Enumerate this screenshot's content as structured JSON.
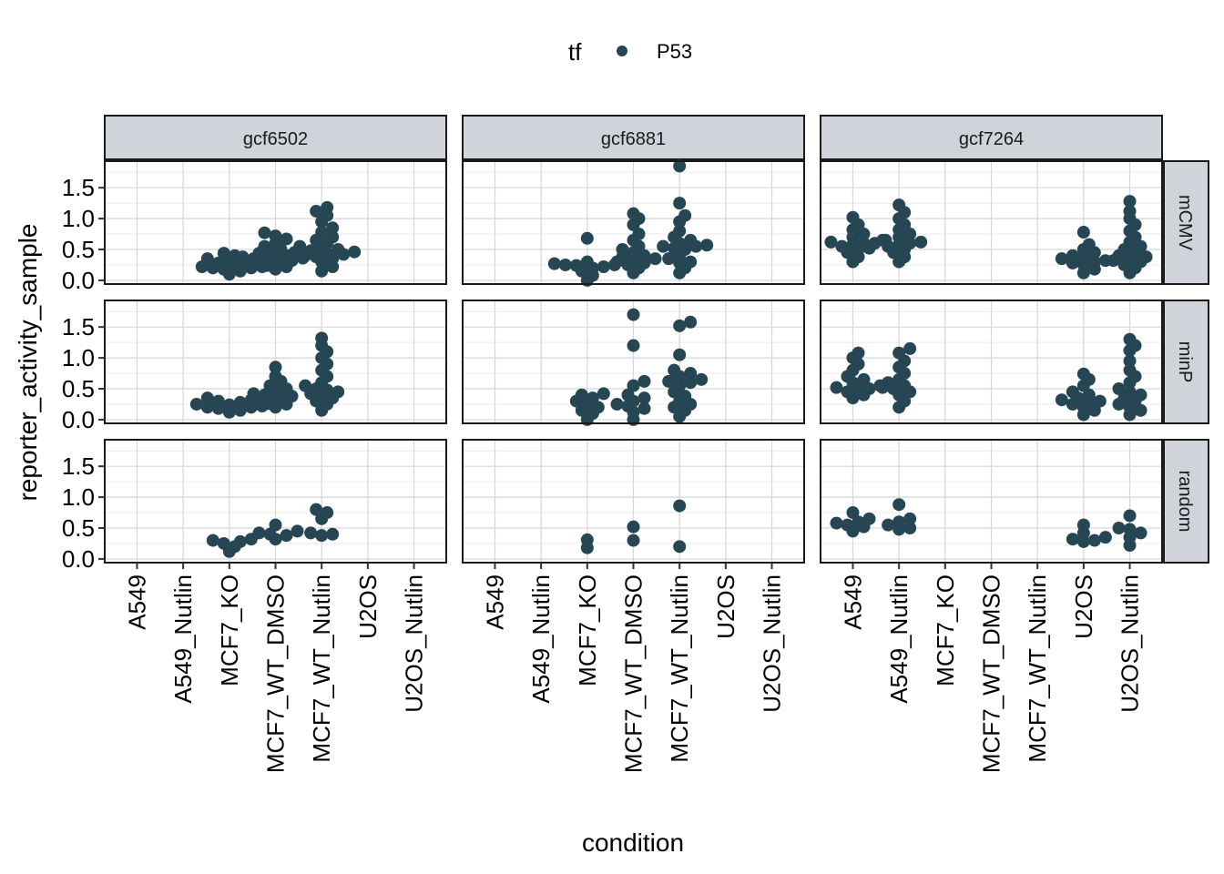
{
  "chart_data": {
    "type": "scatter",
    "subtype": "beeswarm facet grid",
    "xlabel": "condition",
    "ylabel": "reporter_activity_sample",
    "ylim": [
      -0.06,
      1.93
    ],
    "yticks": [
      0.0,
      0.5,
      1.0,
      1.5
    ],
    "ytick_labels": [
      "0.0",
      "0.5",
      "1.0",
      "1.5"
    ],
    "grid": true,
    "legend": {
      "title": "tf",
      "position": "top",
      "entries": [
        {
          "label": "P53",
          "color": "#264653"
        }
      ]
    },
    "point_color": "#264653",
    "categories": [
      "A549",
      "A549_Nutlin",
      "MCF7_KO",
      "MCF7_WT_DMSO",
      "MCF7_WT_Nutlin",
      "U2OS",
      "U2OS_Nutlin"
    ],
    "col_facets": [
      "gcf6502",
      "gcf6881",
      "gcf7264"
    ],
    "row_facets": [
      "mCMV",
      "minP",
      "random"
    ],
    "panels": [
      {
        "col": "gcf6502",
        "row": "mCMV",
        "groups": {
          "MCF7_KO": [
            0.1,
            0.15,
            0.18,
            0.2,
            0.2,
            0.22,
            0.22,
            0.23,
            0.24,
            0.25,
            0.25,
            0.26,
            0.27,
            0.28,
            0.3,
            0.32,
            0.35,
            0.4,
            0.44
          ],
          "MCF7_WT_DMSO": [
            0.18,
            0.22,
            0.26,
            0.3,
            0.32,
            0.34,
            0.35,
            0.36,
            0.38,
            0.38,
            0.4,
            0.42,
            0.44,
            0.47,
            0.5,
            0.55,
            0.6,
            0.67,
            0.72,
            0.77
          ],
          "MCF7_WT_Nutlin": [
            0.15,
            0.22,
            0.3,
            0.35,
            0.38,
            0.4,
            0.42,
            0.44,
            0.45,
            0.46,
            0.48,
            0.5,
            0.52,
            0.55,
            0.6,
            0.65,
            0.7,
            0.78,
            0.85,
            0.95,
            1.05,
            1.12,
            1.18
          ]
        }
      },
      {
        "col": "gcf6881",
        "row": "mCMV",
        "groups": {
          "MCF7_KO": [
            0.0,
            0.08,
            0.15,
            0.2,
            0.22,
            0.24,
            0.25,
            0.25,
            0.27,
            0.3,
            0.68
          ],
          "MCF7_WT_DMSO": [
            0.12,
            0.2,
            0.25,
            0.28,
            0.3,
            0.33,
            0.35,
            0.38,
            0.4,
            0.45,
            0.5,
            0.55,
            0.65,
            0.75,
            0.9,
            1.0,
            1.08
          ],
          "MCF7_WT_Nutlin": [
            0.12,
            0.2,
            0.28,
            0.3,
            0.35,
            0.4,
            0.5,
            0.52,
            0.55,
            0.55,
            0.57,
            0.6,
            0.65,
            0.7,
            0.8,
            0.95,
            1.05,
            1.25,
            1.85
          ]
        }
      },
      {
        "col": "gcf7264",
        "row": "mCMV",
        "groups": {
          "A549": [
            0.3,
            0.38,
            0.45,
            0.5,
            0.52,
            0.55,
            0.58,
            0.6,
            0.6,
            0.62,
            0.65,
            0.7,
            0.75,
            0.82,
            0.9,
            1.02
          ],
          "A549_Nutlin": [
            0.3,
            0.38,
            0.45,
            0.5,
            0.55,
            0.58,
            0.6,
            0.62,
            0.65,
            0.7,
            0.75,
            0.82,
            0.9,
            1.0,
            1.1,
            1.22
          ],
          "U2OS": [
            0.12,
            0.18,
            0.25,
            0.28,
            0.3,
            0.32,
            0.35,
            0.38,
            0.4,
            0.45,
            0.5,
            0.58,
            0.78
          ],
          "U2OS_Nutlin": [
            0.12,
            0.2,
            0.25,
            0.3,
            0.32,
            0.35,
            0.38,
            0.4,
            0.45,
            0.5,
            0.55,
            0.62,
            0.7,
            0.8,
            0.9,
            1.0,
            1.12,
            1.28
          ]
        }
      },
      {
        "col": "gcf6502",
        "row": "minP",
        "groups": {
          "MCF7_KO": [
            0.12,
            0.15,
            0.18,
            0.2,
            0.2,
            0.22,
            0.24,
            0.25,
            0.26,
            0.28,
            0.3,
            0.32,
            0.35
          ],
          "MCF7_WT_DMSO": [
            0.2,
            0.25,
            0.3,
            0.32,
            0.35,
            0.38,
            0.4,
            0.42,
            0.45,
            0.5,
            0.55,
            0.62,
            0.7,
            0.85
          ],
          "MCF7_WT_Nutlin": [
            0.15,
            0.25,
            0.3,
            0.35,
            0.4,
            0.42,
            0.45,
            0.48,
            0.5,
            0.55,
            0.6,
            0.7,
            0.8,
            0.9,
            1.0,
            1.1,
            1.2,
            1.32
          ]
        }
      },
      {
        "col": "gcf6881",
        "row": "minP",
        "groups": {
          "MCF7_KO": [
            0.0,
            0.1,
            0.15,
            0.2,
            0.25,
            0.3,
            0.35,
            0.4,
            0.42
          ],
          "MCF7_WT_DMSO": [
            0.0,
            0.12,
            0.18,
            0.22,
            0.25,
            0.3,
            0.35,
            0.4,
            0.55,
            0.62,
            1.2,
            1.7
          ],
          "MCF7_WT_Nutlin": [
            0.05,
            0.15,
            0.2,
            0.25,
            0.3,
            0.38,
            0.45,
            0.55,
            0.6,
            0.62,
            0.65,
            0.7,
            0.75,
            0.8,
            1.05,
            1.52,
            1.58
          ]
        }
      },
      {
        "col": "gcf7264",
        "row": "minP",
        "groups": {
          "A549": [
            0.35,
            0.4,
            0.45,
            0.48,
            0.5,
            0.52,
            0.55,
            0.6,
            0.65,
            0.7,
            0.8,
            0.9,
            1.0,
            1.08
          ],
          "A549_Nutlin": [
            0.2,
            0.3,
            0.4,
            0.45,
            0.5,
            0.52,
            0.55,
            0.6,
            0.65,
            0.75,
            0.85,
            0.95,
            1.08,
            1.15
          ],
          "U2OS": [
            0.08,
            0.15,
            0.2,
            0.25,
            0.28,
            0.3,
            0.32,
            0.35,
            0.4,
            0.45,
            0.55,
            0.65,
            0.74
          ],
          "U2OS_Nutlin": [
            0.08,
            0.15,
            0.2,
            0.25,
            0.3,
            0.35,
            0.4,
            0.45,
            0.5,
            0.6,
            0.7,
            0.8,
            0.95,
            1.12,
            1.2,
            1.3
          ]
        }
      },
      {
        "col": "gcf6502",
        "row": "random",
        "groups": {
          "MCF7_KO": [
            0.12,
            0.2,
            0.25,
            0.28,
            0.3,
            0.32
          ],
          "MCF7_WT_DMSO": [
            0.32,
            0.38,
            0.4,
            0.42,
            0.45,
            0.55
          ],
          "MCF7_WT_Nutlin": [
            0.38,
            0.4,
            0.42,
            0.65,
            0.75,
            0.8
          ]
        }
      },
      {
        "col": "gcf6881",
        "row": "random",
        "groups": {
          "MCF7_KO": [
            0.18,
            0.31
          ],
          "MCF7_WT_DMSO": [
            0.3,
            0.52
          ],
          "MCF7_WT_Nutlin": [
            0.2,
            0.86
          ]
        }
      },
      {
        "col": "gcf7264",
        "row": "random",
        "groups": {
          "A549": [
            0.45,
            0.52,
            0.55,
            0.58,
            0.6,
            0.65,
            0.75
          ],
          "A549_Nutlin": [
            0.48,
            0.5,
            0.55,
            0.6,
            0.65,
            0.88
          ],
          "U2OS": [
            0.28,
            0.3,
            0.32,
            0.35,
            0.42,
            0.55
          ],
          "U2OS_Nutlin": [
            0.22,
            0.35,
            0.42,
            0.48,
            0.5,
            0.7
          ]
        }
      }
    ]
  }
}
